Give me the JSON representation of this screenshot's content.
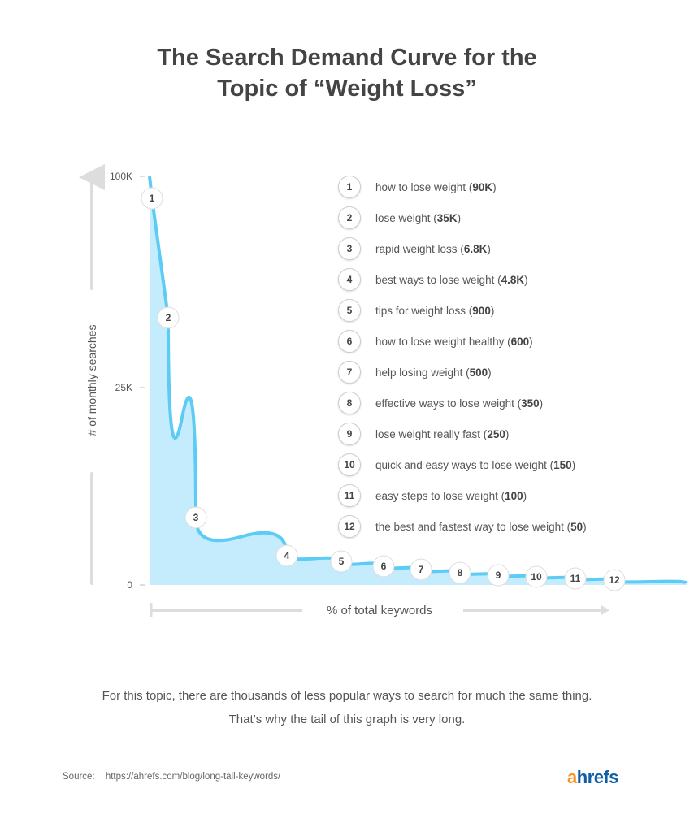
{
  "title_line1": "The Search Demand Curve for the",
  "title_line2": "Topic of “Weight Loss”",
  "chart_data": {
    "type": "area",
    "ylabel": "# of monthly searches",
    "xlabel": "% of total keywords",
    "y_ticks": [
      "100K",
      "25K",
      "0"
    ],
    "y_tick_values": [
      100000,
      25000,
      0
    ],
    "scale": "nonlinear (illustrative)",
    "line_color": "#5ccbf5",
    "fill_color": "#c4ecfd",
    "points": [
      {
        "rank": "1",
        "keyword": "how to lose weight",
        "label": "90K",
        "value": 90000
      },
      {
        "rank": "2",
        "keyword": "lose weight",
        "label": "35K",
        "value": 35000
      },
      {
        "rank": "3",
        "keyword": "rapid weight loss",
        "label": "6.8K",
        "value": 6800
      },
      {
        "rank": "4",
        "keyword": "best ways to lose weight",
        "label": "4.8K",
        "value": 4800
      },
      {
        "rank": "5",
        "keyword": "tips for weight loss",
        "label": "900",
        "value": 900
      },
      {
        "rank": "6",
        "keyword": "how to lose weight healthy",
        "label": "600",
        "value": 600
      },
      {
        "rank": "7",
        "keyword": "help losing weight",
        "label": "500",
        "value": 500
      },
      {
        "rank": "8",
        "keyword": "effective ways to lose weight",
        "label": "350",
        "value": 350
      },
      {
        "rank": "9",
        "keyword": "lose weight really fast",
        "label": "250",
        "value": 250
      },
      {
        "rank": "10",
        "keyword": "quick and easy ways to lose weight",
        "label": "150",
        "value": 150
      },
      {
        "rank": "11",
        "keyword": "easy steps to lose weight",
        "label": "100",
        "value": 100
      },
      {
        "rank": "12",
        "keyword": "the best and fastest way to lose weight",
        "label": "50",
        "value": 50
      }
    ]
  },
  "caption_line1": "For this topic, there are thousands of less popular ways to search for much the same thing.",
  "caption_line2": "That’s why the tail of this graph is very long.",
  "source_label": "Source:",
  "source_url": "https://ahrefs.com/blog/long-tail-keywords/",
  "logo": "ahrefs"
}
